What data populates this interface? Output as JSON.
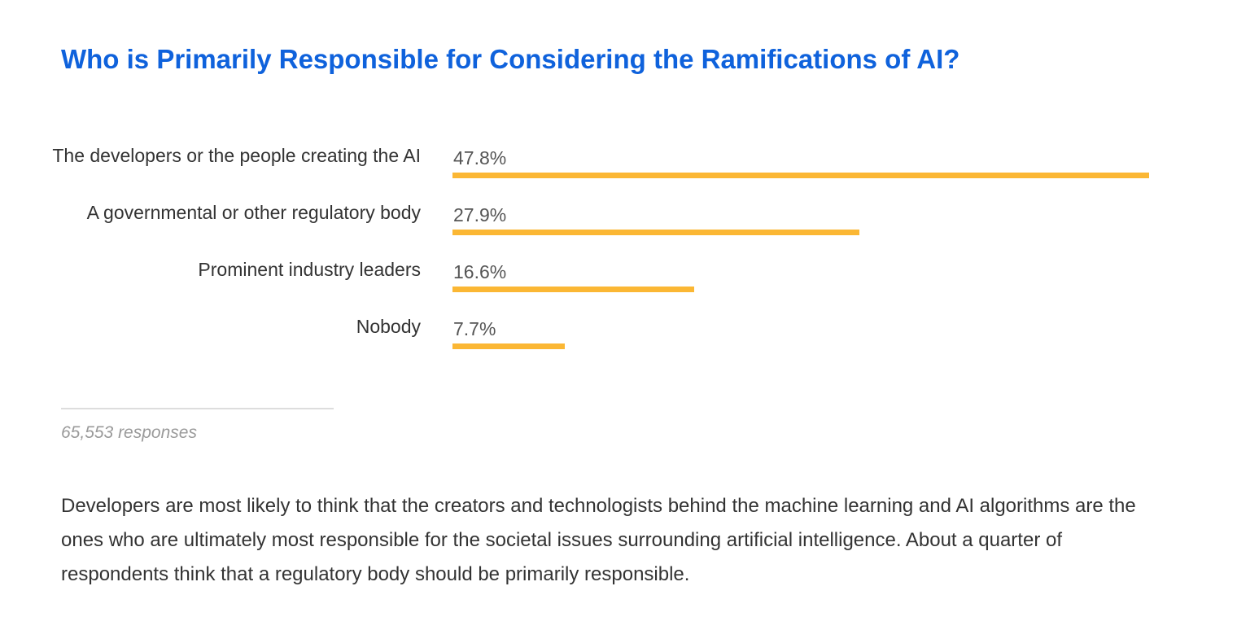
{
  "page": {
    "title": "Who is Primarily Responsible for Considering the Ramifications of AI?",
    "responses": "65,553 responses",
    "description": "Developers are most likely to think that the creators and technologists behind the machine learning and AI algorithms are the ones who are ultimately most responsible for the societal issues surrounding artificial intelligence. About a quarter of respondents think that a regulatory body should be primarily responsible."
  },
  "chart_data": {
    "type": "bar",
    "orientation": "horizontal",
    "title": "Who is Primarily Responsible for Considering the Ramifications of AI?",
    "categories": [
      "The developers or the people creating the AI",
      "A governmental or other regulatory body",
      "Prominent industry leaders",
      "Nobody"
    ],
    "values": [
      47.8,
      27.9,
      16.6,
      7.7
    ],
    "value_labels": [
      "47.8%",
      "27.9%",
      "16.6%",
      "7.7%"
    ],
    "unit": "%",
    "xlim": [
      0,
      47.8
    ],
    "bar_color": "#fbb734",
    "grid": false
  },
  "colors": {
    "title": "#0f62dc",
    "bar": "#fbb734",
    "text": "#333333",
    "muted": "#9a9a9a"
  }
}
